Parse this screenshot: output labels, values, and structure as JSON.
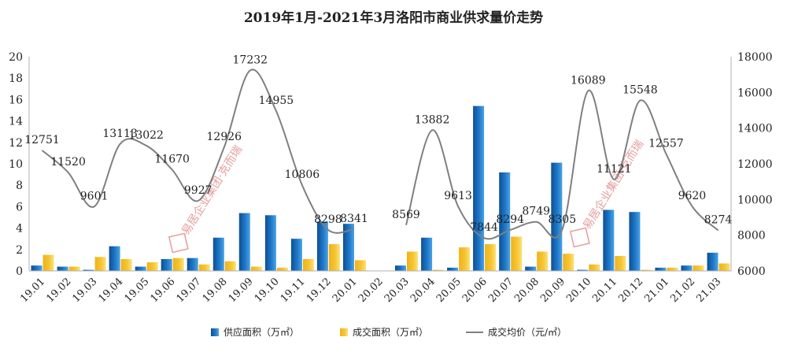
{
  "chart_data": {
    "type": "bar",
    "title": "2019年1月-2021年3月洛阳市商业供求量价走势",
    "categories": [
      "19.01",
      "19.02",
      "19.03",
      "19.04",
      "19.05",
      "19.06",
      "19.07",
      "19.08",
      "19.09",
      "19.10",
      "19.11",
      "19.12",
      "20.01",
      "20.02",
      "20.03",
      "20.04",
      "20.05",
      "20.06",
      "20.07",
      "20.08",
      "20.09",
      "20.10",
      "20.11",
      "20.12",
      "21.01",
      "21.02",
      "21.03"
    ],
    "ylim_left": [
      0,
      20
    ],
    "yticks_left": [
      0,
      2,
      4,
      6,
      8,
      10,
      12,
      14,
      16,
      18,
      20
    ],
    "ylim_right": [
      6000,
      18000
    ],
    "yticks_right": [
      6000,
      8000,
      10000,
      12000,
      14000,
      16000,
      18000
    ],
    "series": [
      {
        "name": "供应面积（万㎡）",
        "kind": "bar",
        "axis": "left",
        "color": "#1f78c8",
        "values": [
          0.5,
          0.4,
          0.1,
          2.3,
          0.4,
          1.1,
          1.2,
          3.1,
          5.4,
          5.2,
          3.0,
          4.6,
          4.4,
          0.0,
          0.5,
          3.1,
          0.3,
          15.4,
          9.2,
          0.4,
          10.1,
          0.1,
          5.7,
          5.5,
          0.3,
          0.5,
          1.7
        ]
      },
      {
        "name": "成交面积（万㎡）",
        "kind": "bar",
        "axis": "left",
        "color": "#f5c531",
        "values": [
          1.5,
          0.4,
          1.3,
          1.1,
          0.8,
          1.2,
          0.6,
          0.9,
          0.4,
          0.3,
          1.1,
          2.5,
          1.0,
          0.0,
          1.8,
          0.1,
          2.2,
          2.5,
          3.2,
          1.8,
          1.6,
          0.6,
          1.4,
          0.1,
          0.3,
          0.5,
          0.7
        ]
      },
      {
        "name": "成交均价（元/㎡）",
        "kind": "line",
        "axis": "right",
        "color": "#7f7f7f",
        "values": [
          12751,
          11520,
          9601,
          13113,
          13022,
          11670,
          9927,
          12926,
          17232,
          14955,
          10806,
          8298,
          8341,
          null,
          8569,
          13882,
          9613,
          7844,
          8294,
          8749,
          8305,
          16089,
          11121,
          15548,
          12557,
          9620,
          8274
        ],
        "labels": [
          "12751",
          "11520",
          "9601",
          "13113",
          "13022",
          "11670",
          "9927",
          "12926",
          "17232",
          "14955",
          "10806",
          "8298",
          "8341",
          "",
          "8569",
          "13882",
          "9613",
          "7844",
          "8294",
          "8749",
          "8305",
          "16089",
          "11121",
          "15548",
          "12557",
          "9620",
          "8274"
        ]
      }
    ],
    "legend_position": "bottom",
    "grid": false
  },
  "watermark": {
    "text": "易居企业集团·克而瑞",
    "logo_text": "易居"
  }
}
